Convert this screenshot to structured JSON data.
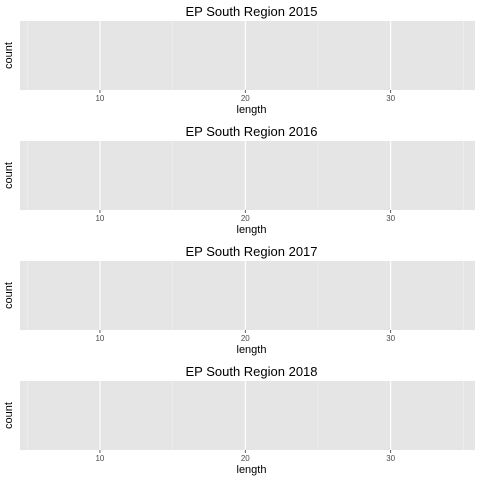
{
  "chart_data": [
    {
      "type": "bar",
      "title": "EP South Region 2015",
      "xlabel": "length",
      "ylabel": "count",
      "xlim": [
        4.5,
        35.8
      ],
      "x_ticks": [
        10,
        20,
        30
      ],
      "x_tick_labels": [
        "10",
        "20",
        "30"
      ],
      "x_minor": [
        5,
        15,
        25,
        35
      ],
      "grid": true,
      "values": []
    },
    {
      "type": "bar",
      "title": "EP South Region 2016",
      "xlabel": "length",
      "ylabel": "count",
      "xlim": [
        4.5,
        35.8
      ],
      "x_ticks": [
        10,
        20,
        30
      ],
      "x_tick_labels": [
        "10",
        "20",
        "30"
      ],
      "x_minor": [
        5,
        15,
        25,
        35
      ],
      "grid": true,
      "values": []
    },
    {
      "type": "bar",
      "title": "EP South Region 2017",
      "xlabel": "length",
      "ylabel": "count",
      "xlim": [
        4.5,
        35.8
      ],
      "x_ticks": [
        10,
        20,
        30
      ],
      "x_tick_labels": [
        "10",
        "20",
        "30"
      ],
      "x_minor": [
        5,
        15,
        25,
        35
      ],
      "grid": true,
      "values": []
    },
    {
      "type": "bar",
      "title": "EP South Region 2018",
      "xlabel": "length",
      "ylabel": "count",
      "xlim": [
        4.5,
        35.8
      ],
      "x_ticks": [
        10,
        20,
        30
      ],
      "x_tick_labels": [
        "10",
        "20",
        "30"
      ],
      "x_minor": [
        5,
        15,
        25,
        35
      ],
      "grid": true,
      "values": []
    }
  ],
  "colors": {
    "panel_background": "#e5e5e5",
    "grid_major": "#ffffff",
    "grid_minor": "#f2f2f2",
    "tick_label": "#4d4d4d",
    "text": "#000000"
  }
}
